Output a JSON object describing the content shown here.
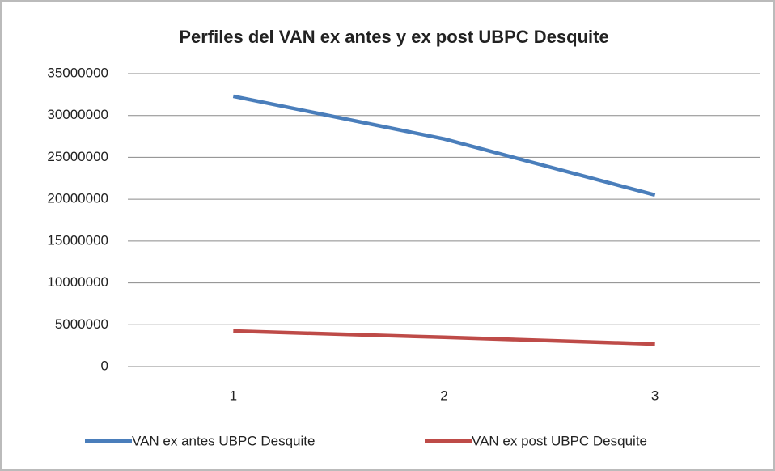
{
  "chart_data": {
    "type": "line",
    "title": "Perfiles del VAN ex antes y ex post UBPC  Desquite",
    "categories": [
      "1",
      "2",
      "3"
    ],
    "series": [
      {
        "name": "VAN ex antes UBPC Desquite",
        "color": "#4a7ebb",
        "values": [
          32300000,
          27200000,
          20500000
        ]
      },
      {
        "name": "VAN ex post UBPC Desquite",
        "color": "#be4b48",
        "values": [
          4250000,
          3500000,
          2700000
        ]
      }
    ],
    "ylim": [
      0,
      35000000
    ],
    "yticks": [
      0,
      5000000,
      10000000,
      15000000,
      20000000,
      25000000,
      30000000,
      35000000
    ],
    "grid": true,
    "legend": "bottom"
  }
}
